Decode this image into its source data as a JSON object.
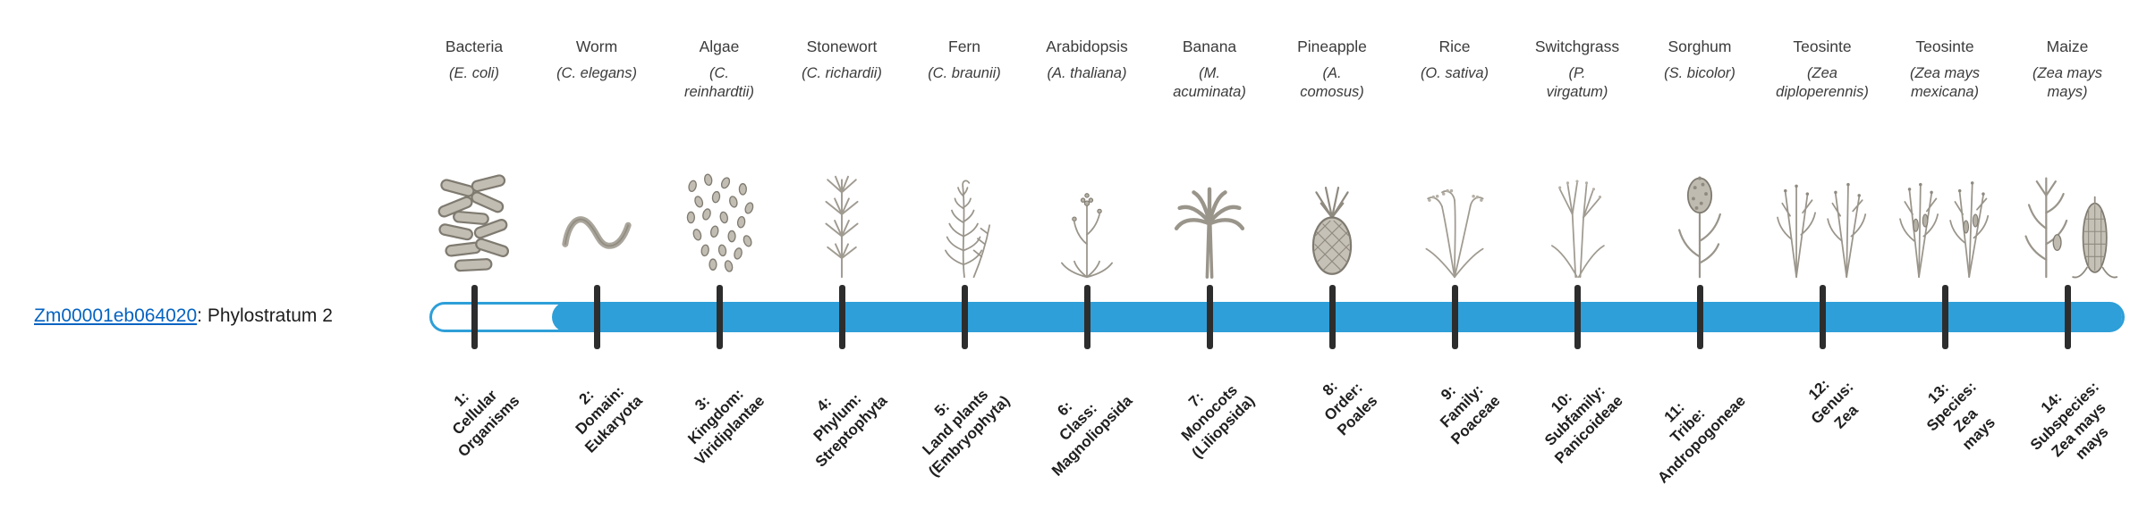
{
  "gene": {
    "id": "Zm00001eb064020",
    "suffix": ": Phylostratum 2",
    "phylostratum": 2
  },
  "colors": {
    "bar": "#2E9FD8",
    "tick": "#2d2d2d",
    "link": "#0563C1",
    "text": "#3b3b3b"
  },
  "strata": [
    {
      "index": 1,
      "organism": "Bacteria",
      "scientific": "(E. coli)",
      "icon": "bacteria-icon",
      "label": "1:\nCellular\nOrganisms"
    },
    {
      "index": 2,
      "organism": "Worm",
      "scientific": "(C. elegans)",
      "icon": "worm-icon",
      "label": "2:\nDomain:\nEukaryota"
    },
    {
      "index": 3,
      "organism": "Algae",
      "scientific": "(C.\nreinhardtii)",
      "icon": "algae-icon",
      "label": "3:\nKingdom:\nViridiplantae"
    },
    {
      "index": 4,
      "organism": "Stonewort",
      "scientific": "(C. richardii)",
      "icon": "stonewort-icon",
      "label": "4:\nPhylum:\nStreptophyta"
    },
    {
      "index": 5,
      "organism": "Fern",
      "scientific": "(C. braunii)",
      "icon": "fern-icon",
      "label": "5:\nLand plants\n(Embryophyta)"
    },
    {
      "index": 6,
      "organism": "Arabidopsis",
      "scientific": "(A. thaliana)",
      "icon": "arabidopsis-icon",
      "label": "6:\nClass:\nMagnoliopsida"
    },
    {
      "index": 7,
      "organism": "Banana",
      "scientific": "(M.\nacuminata)",
      "icon": "banana-icon",
      "label": "7:\nMonocots\n(Liliopsida)"
    },
    {
      "index": 8,
      "organism": "Pineapple",
      "scientific": "(A.\ncomosus)",
      "icon": "pineapple-icon",
      "label": "8:\nOrder:\nPoales"
    },
    {
      "index": 9,
      "organism": "Rice",
      "scientific": "(O. sativa)",
      "icon": "rice-icon",
      "label": "9:\nFamily:\nPoaceae"
    },
    {
      "index": 10,
      "organism": "Switchgrass",
      "scientific": "(P.\nvirgatum)",
      "icon": "switchgrass-icon",
      "label": "10:\nSubfamily:\nPanicoideae"
    },
    {
      "index": 11,
      "organism": "Sorghum",
      "scientific": "(S. bicolor)",
      "icon": "sorghum-icon",
      "label": "11:\nTribe:\nAndropogoneae"
    },
    {
      "index": 12,
      "organism": "Teosinte",
      "scientific": "(Zea\ndiploperennis)",
      "icon": "teosinte-diploperennis-icon",
      "label": "12:\nGenus:\nZea"
    },
    {
      "index": 13,
      "organism": "Teosinte",
      "scientific": "(Zea mays\nmexicana)",
      "icon": "teosinte-mexicana-icon",
      "label": "13:\nSpecies:\nZea\nmays"
    },
    {
      "index": 14,
      "organism": "Maize",
      "scientific": "(Zea mays\nmays)",
      "icon": "maize-icon",
      "label": "14:\nSubspecies:\nZea mays\nmays"
    }
  ]
}
